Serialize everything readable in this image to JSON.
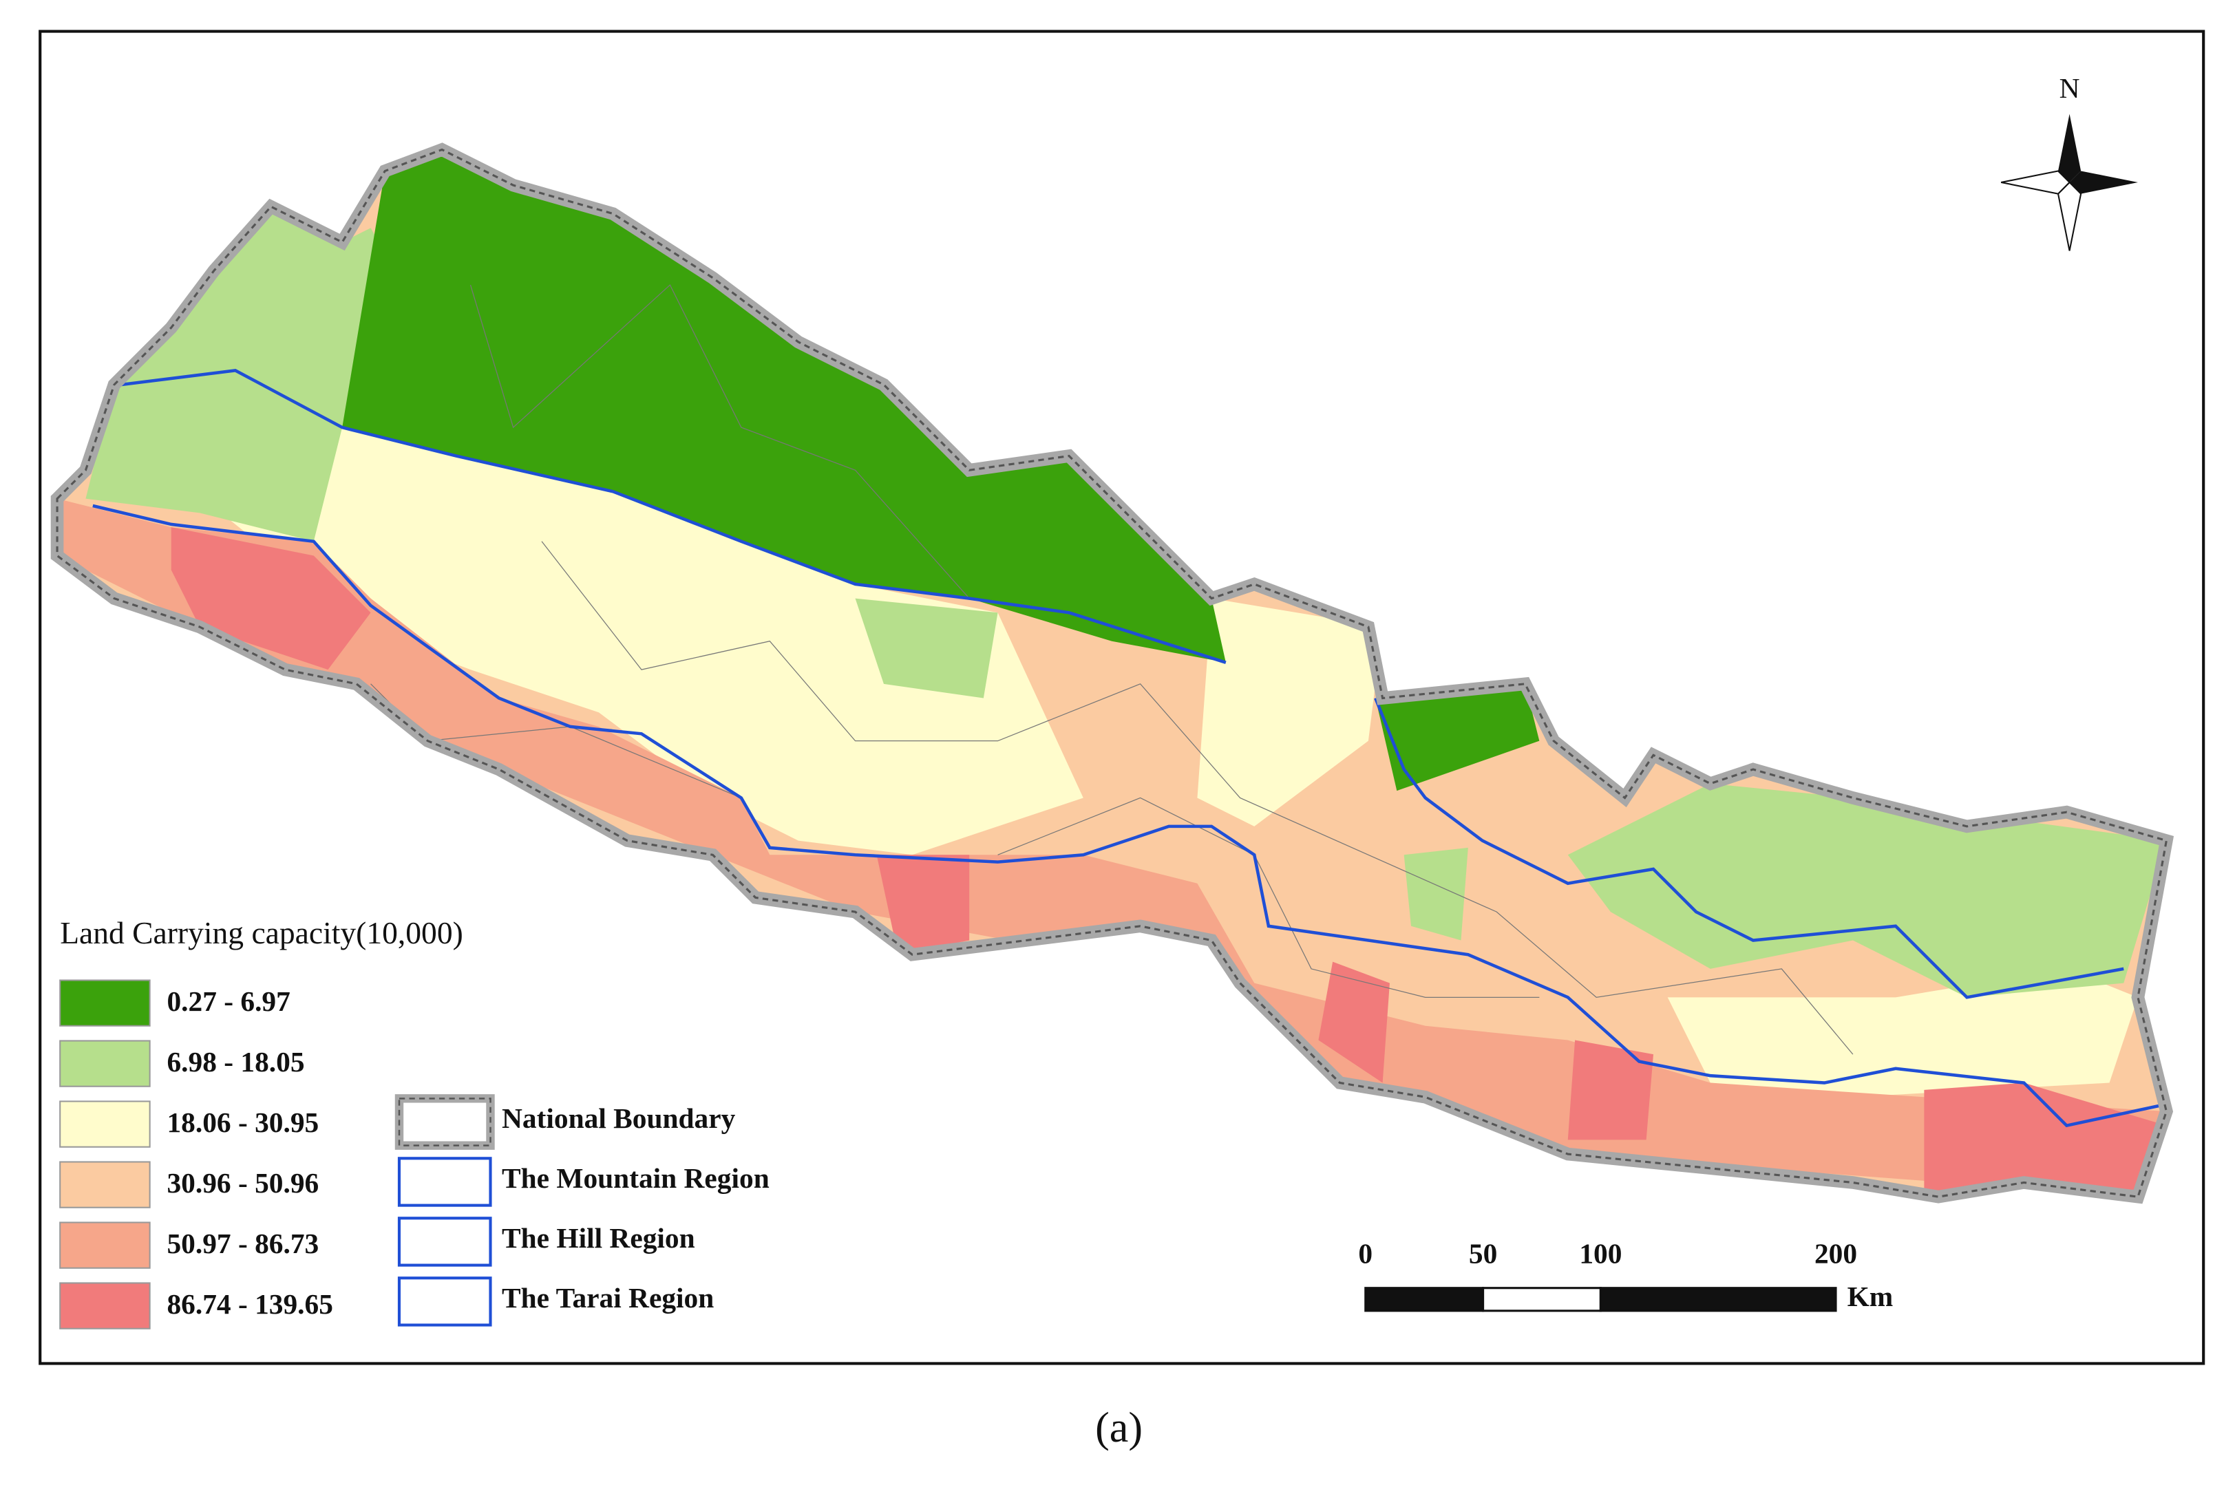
{
  "legend": {
    "title": "Land Carrying capacity(10,000)",
    "classes": [
      {
        "label": "0.27 - 6.97",
        "color": "#3ba20c"
      },
      {
        "label": "6.98 - 18.05",
        "color": "#b6df8c"
      },
      {
        "label": "18.06 - 30.95",
        "color": "#fffccc"
      },
      {
        "label": "30.96 - 50.96",
        "color": "#fbcba1"
      },
      {
        "label": "50.97 - 86.73",
        "color": "#f6a68a"
      },
      {
        "label": "86.74 - 139.65",
        "color": "#f17b7b"
      }
    ],
    "boundaries": [
      {
        "label": "National Boundary"
      },
      {
        "label": "The Mountain Region"
      },
      {
        "label": "The Hill Region"
      },
      {
        "label": "The Tarai Region"
      }
    ]
  },
  "north": "N",
  "scale": {
    "ticks": [
      0,
      50,
      100,
      200
    ],
    "unit": "Km"
  },
  "caption": "(a)"
}
